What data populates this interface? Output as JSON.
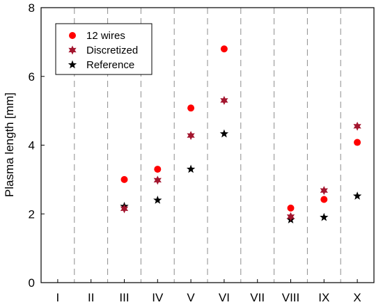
{
  "chart_data": {
    "type": "scatter",
    "ylabel": "Plasma length [mm]",
    "xlabel": "",
    "categories": [
      "I",
      "II",
      "III",
      "IV",
      "V",
      "VI",
      "VII",
      "VIII",
      "IX",
      "X"
    ],
    "ylim": [
      0,
      8
    ],
    "yticks": [
      0,
      2,
      4,
      6,
      8
    ],
    "grid": "vertical dashed lines between categories",
    "legend_position": "top-left",
    "series": [
      {
        "name": "12 wires",
        "marker": "circle",
        "color": "#ff0000",
        "values": [
          null,
          null,
          3.0,
          3.3,
          5.08,
          6.8,
          null,
          2.17,
          2.42,
          4.08
        ]
      },
      {
        "name": "Discretized",
        "marker": "hexagram",
        "color": "#a3152e",
        "values": [
          null,
          null,
          2.15,
          2.98,
          4.28,
          5.3,
          null,
          1.92,
          2.68,
          4.55
        ]
      },
      {
        "name": "Reference",
        "marker": "star",
        "color": "#000000",
        "values": [
          null,
          null,
          2.22,
          2.4,
          3.3,
          4.33,
          null,
          1.83,
          1.9,
          2.52
        ]
      }
    ]
  }
}
